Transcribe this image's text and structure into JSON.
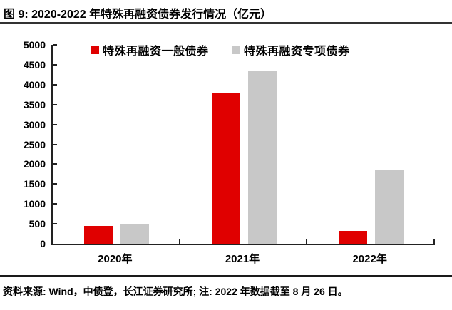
{
  "header": {
    "title": "图 9: 2020-2022 年特殊再融资债券发行情况（亿元）"
  },
  "chart_data": {
    "type": "bar",
    "title": "图 9: 2020-2022 年特殊再融资债券发行情况（亿元）",
    "categories": [
      "2020年",
      "2021年",
      "2022年"
    ],
    "series": [
      {
        "name": "特殊再融资一般债券",
        "color": "#e00000",
        "values": [
          450,
          3800,
          320
        ]
      },
      {
        "name": "特殊再融资专项债券",
        "color": "#c8c8c8",
        "values": [
          500,
          4350,
          1850
        ]
      }
    ],
    "xlabel": "",
    "ylabel": "",
    "ylim": [
      0,
      5000
    ],
    "yticks": [
      0,
      500,
      1000,
      1500,
      2000,
      2500,
      3000,
      3500,
      4000,
      4500,
      5000
    ],
    "legend_position": "top",
    "grid": false
  },
  "footer": {
    "source_note": "资料来源: Wind，中债登，长江证券研究所; 注: 2022 年数据截至 8 月 26 日。"
  },
  "colors": {
    "bar_general": "#e00000",
    "bar_special": "#c8c8c8",
    "axis": "#222222",
    "rule": "#333333",
    "text": "#000000"
  }
}
